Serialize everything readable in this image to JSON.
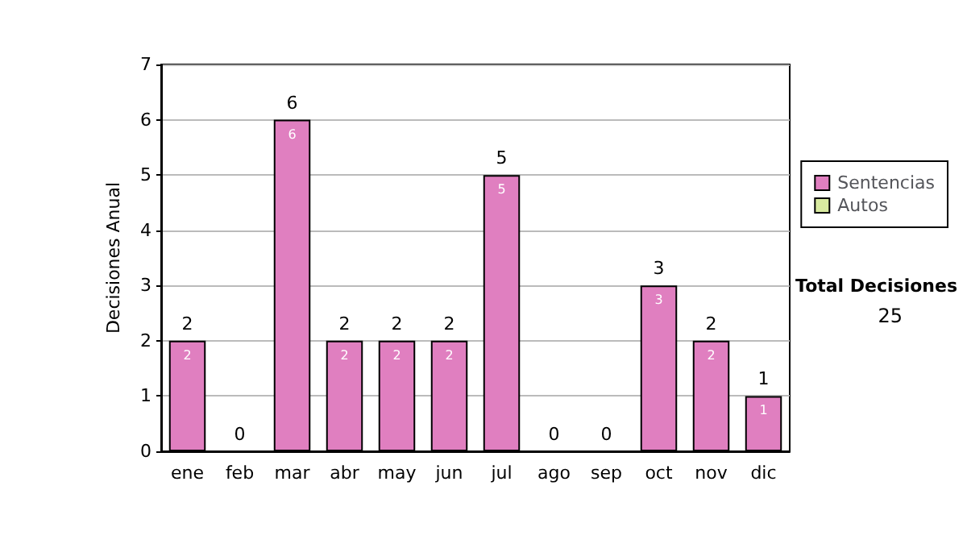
{
  "chart_data": {
    "type": "bar",
    "stacked": true,
    "ylabel": "Decisiones Anual",
    "categories": [
      "ene",
      "feb",
      "mar",
      "abr",
      "may",
      "jun",
      "jul",
      "ago",
      "sep",
      "oct",
      "nov",
      "dic"
    ],
    "series": [
      {
        "name": "Sentencias",
        "color": "#e07fc0",
        "values": [
          2,
          0,
          6,
          2,
          2,
          2,
          5,
          0,
          0,
          3,
          2,
          1
        ],
        "value_labels": [
          "2",
          null,
          "6",
          "2",
          "2",
          "2",
          "5",
          null,
          null,
          "3",
          "2",
          "1"
        ]
      },
      {
        "name": "Autos",
        "color": "#d8eaa0",
        "values": [
          0,
          0,
          0,
          0,
          0,
          0,
          0,
          0,
          0,
          0,
          0,
          0
        ]
      }
    ],
    "totals": [
      "2",
      "0",
      "6",
      "2",
      "2",
      "2",
      "5",
      "0",
      "0",
      "3",
      "2",
      "1"
    ],
    "ylim": [
      0,
      7
    ],
    "yticks": [
      0,
      1,
      2,
      3,
      4,
      5,
      6,
      7
    ],
    "grid": "y",
    "legend": "right",
    "annotations": [
      "Total Decisiones",
      "25"
    ]
  }
}
